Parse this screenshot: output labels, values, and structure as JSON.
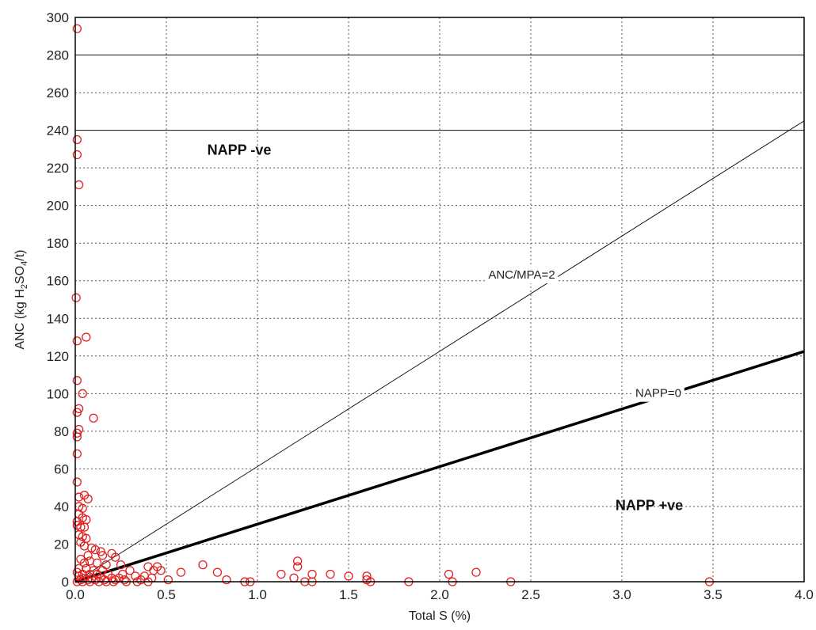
{
  "chart_data": {
    "type": "scatter",
    "xlabel": "Total S (%)",
    "ylabel_parts": [
      "ANC (kg H",
      "2",
      "SO",
      "4",
      "/t)"
    ],
    "xlim": [
      0,
      4.0
    ],
    "ylim": [
      0,
      300
    ],
    "x_ticks": [
      0,
      0.5,
      1.0,
      1.5,
      2.0,
      2.5,
      3.0,
      3.5,
      4.0
    ],
    "x_tick_labels": [
      "0.0",
      "0.5",
      "1.0",
      "1.5",
      "2.0",
      "2.5",
      "3.0",
      "3.5",
      "4.0"
    ],
    "y_ticks": [
      0,
      20,
      40,
      60,
      80,
      100,
      120,
      140,
      160,
      180,
      200,
      220,
      240,
      260,
      280,
      300
    ],
    "grid": "dotted vertical and horizontal; solid at 240 and 280",
    "colors": {
      "points": "#e02020",
      "lines": "#000000"
    },
    "regions": [
      {
        "label": "NAPP -ve",
        "x": 0.9,
        "y": 227
      },
      {
        "label": "NAPP +ve",
        "x": 3.15,
        "y": 38
      }
    ],
    "lines": [
      {
        "label": "ANC/MPA=2",
        "slope": 61.25,
        "style": "thin",
        "label_x": 2.45,
        "label_y": 162
      },
      {
        "label": "NAPP=0",
        "slope": 30.6,
        "style": "thick",
        "label_x": 3.2,
        "label_y": 99
      }
    ],
    "points": [
      [
        0.01,
        294
      ],
      [
        0.01,
        235
      ],
      [
        0.01,
        227
      ],
      [
        0.02,
        211
      ],
      [
        0.005,
        151
      ],
      [
        0.01,
        128
      ],
      [
        0.06,
        130
      ],
      [
        0.01,
        107
      ],
      [
        0.04,
        100
      ],
      [
        0.1,
        87
      ],
      [
        0.02,
        92
      ],
      [
        0.01,
        90
      ],
      [
        0.02,
        81
      ],
      [
        0.01,
        79
      ],
      [
        0.01,
        77
      ],
      [
        0.01,
        68
      ],
      [
        0.01,
        53
      ],
      [
        0.02,
        45
      ],
      [
        0.05,
        46
      ],
      [
        0.07,
        44
      ],
      [
        0.02,
        40
      ],
      [
        0.04,
        39
      ],
      [
        0.02,
        36
      ],
      [
        0.04,
        34
      ],
      [
        0.06,
        33
      ],
      [
        0.01,
        32
      ],
      [
        0.01,
        30
      ],
      [
        0.03,
        29
      ],
      [
        0.05,
        29
      ],
      [
        0.02,
        25
      ],
      [
        0.04,
        24
      ],
      [
        0.06,
        23
      ],
      [
        0.03,
        21
      ],
      [
        0.05,
        19
      ],
      [
        0.09,
        18
      ],
      [
        0.11,
        17
      ],
      [
        0.14,
        16
      ],
      [
        0.2,
        15
      ],
      [
        0.15,
        14
      ],
      [
        0.22,
        13
      ],
      [
        0.07,
        14
      ],
      [
        0.03,
        12
      ],
      [
        0.05,
        10
      ],
      [
        0.08,
        11
      ],
      [
        0.12,
        10
      ],
      [
        0.17,
        9
      ],
      [
        0.25,
        9
      ],
      [
        0.4,
        8
      ],
      [
        0.45,
        8
      ],
      [
        0.02,
        7
      ],
      [
        0.06,
        7
      ],
      [
        0.1,
        6
      ],
      [
        0.15,
        6
      ],
      [
        0.3,
        6
      ],
      [
        0.43,
        6
      ],
      [
        0.47,
        6
      ],
      [
        0.58,
        5
      ],
      [
        0.01,
        5
      ],
      [
        0.04,
        4
      ],
      [
        0.08,
        4
      ],
      [
        0.12,
        4
      ],
      [
        0.18,
        4
      ],
      [
        0.26,
        4
      ],
      [
        0.33,
        3
      ],
      [
        0.38,
        3
      ],
      [
        0.02,
        3
      ],
      [
        0.05,
        2
      ],
      [
        0.09,
        2
      ],
      [
        0.14,
        2
      ],
      [
        0.2,
        2
      ],
      [
        0.24,
        2
      ],
      [
        0.42,
        2
      ],
      [
        0.36,
        1
      ],
      [
        0.03,
        1
      ],
      [
        0.07,
        1
      ],
      [
        0.11,
        1
      ],
      [
        0.16,
        1
      ],
      [
        0.22,
        1
      ],
      [
        0.27,
        1
      ],
      [
        0.51,
        1
      ],
      [
        0.01,
        0
      ],
      [
        0.04,
        0
      ],
      [
        0.08,
        0
      ],
      [
        0.13,
        0
      ],
      [
        0.17,
        0
      ],
      [
        0.21,
        0
      ],
      [
        0.28,
        0
      ],
      [
        0.34,
        0
      ],
      [
        0.4,
        0
      ],
      [
        0.7,
        9
      ],
      [
        0.78,
        5
      ],
      [
        0.83,
        1
      ],
      [
        0.93,
        0
      ],
      [
        0.96,
        0
      ],
      [
        1.13,
        4
      ],
      [
        1.2,
        2
      ],
      [
        1.22,
        11
      ],
      [
        1.22,
        8
      ],
      [
        1.26,
        0
      ],
      [
        1.3,
        4
      ],
      [
        1.3,
        0
      ],
      [
        1.4,
        4
      ],
      [
        1.5,
        3
      ],
      [
        1.6,
        3
      ],
      [
        1.6,
        1
      ],
      [
        1.62,
        0
      ],
      [
        1.83,
        0
      ],
      [
        2.05,
        4
      ],
      [
        2.07,
        0
      ],
      [
        2.2,
        5
      ],
      [
        2.39,
        0
      ],
      [
        3.48,
        0
      ]
    ]
  }
}
